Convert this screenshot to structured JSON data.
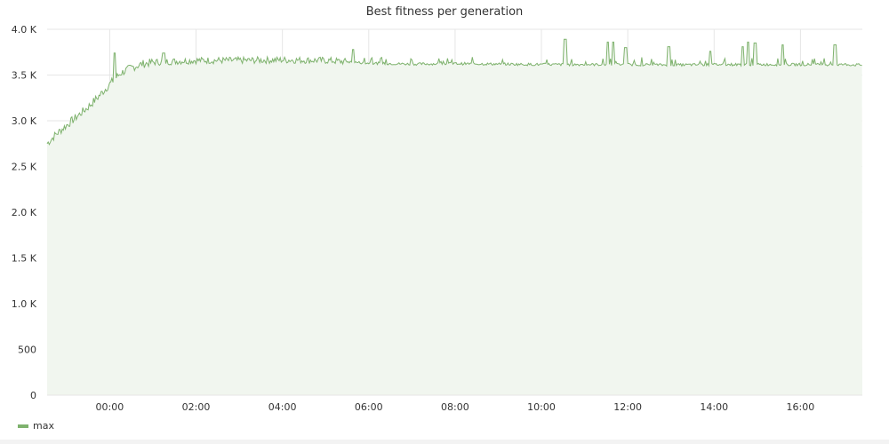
{
  "panel": {
    "title": "Best fitness per generation",
    "legend": [
      {
        "label": "max",
        "color": "#7eb26d"
      }
    ]
  },
  "chart_data": {
    "type": "area",
    "title": "Best fitness per generation",
    "xlabel": "",
    "ylabel": "",
    "x_ticks": [
      "00:00",
      "02:00",
      "04:00",
      "06:00",
      "08:00",
      "10:00",
      "12:00",
      "14:00",
      "16:00"
    ],
    "y_ticks": [
      "0",
      "500",
      "1.0 K",
      "1.5 K",
      "2.0 K",
      "2.5 K",
      "3.0 K",
      "3.5 K",
      "4.0 K"
    ],
    "xlim": [
      "-01:27",
      "17:26"
    ],
    "ylim": [
      0,
      4000
    ],
    "grid": true,
    "legend_position": "bottom-left",
    "series": [
      {
        "name": "max",
        "color": "#7eb26d",
        "fill_color": "#f1f6ef",
        "x": [
          "-01:27",
          "-01:15",
          "-01:00",
          "-00:45",
          "-00:30",
          "-00:15",
          "00:00",
          "00:15",
          "00:30",
          "00:45",
          "01:00",
          "01:30",
          "02:00",
          "03:00",
          "04:00",
          "05:00",
          "06:00",
          "07:00",
          "08:00",
          "09:00",
          "10:00",
          "11:00",
          "12:00",
          "13:00",
          "14:00",
          "15:00",
          "16:00",
          "17:00",
          "17:26"
        ],
        "values": [
          2750,
          2850,
          2950,
          3050,
          3150,
          3270,
          3400,
          3520,
          3580,
          3620,
          3640,
          3650,
          3660,
          3660,
          3665,
          3660,
          3630,
          3620,
          3625,
          3620,
          3615,
          3615,
          3615,
          3610,
          3615,
          3615,
          3615,
          3615,
          3610
        ]
      }
    ],
    "spikes": [
      {
        "x": "00:07",
        "y": 3740
      },
      {
        "x": "01:15",
        "y": 3740
      },
      {
        "x": "05:38",
        "y": 3780
      },
      {
        "x": "10:33",
        "y": 3890
      },
      {
        "x": "11:32",
        "y": 3860
      },
      {
        "x": "11:40",
        "y": 3860
      },
      {
        "x": "11:57",
        "y": 3800
      },
      {
        "x": "12:57",
        "y": 3810
      },
      {
        "x": "13:55",
        "y": 3760
      },
      {
        "x": "14:40",
        "y": 3810
      },
      {
        "x": "14:47",
        "y": 3860
      },
      {
        "x": "14:57",
        "y": 3850
      },
      {
        "x": "15:35",
        "y": 3830
      },
      {
        "x": "16:48",
        "y": 3830
      }
    ]
  }
}
